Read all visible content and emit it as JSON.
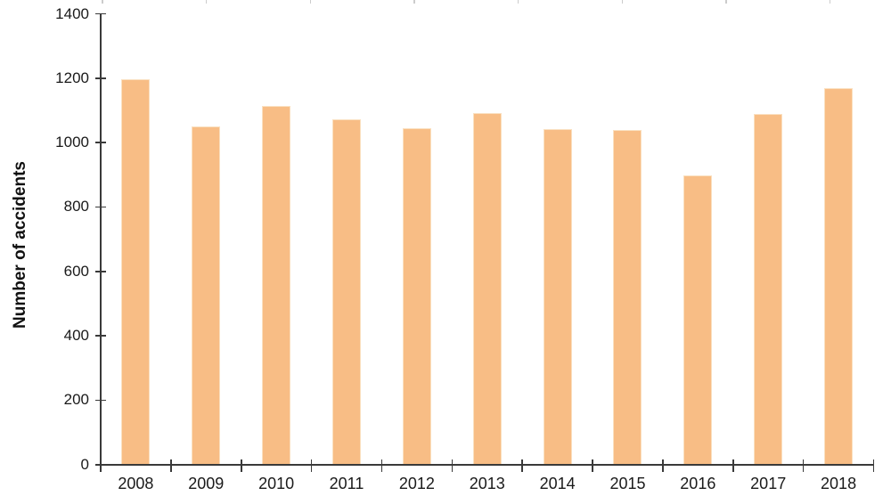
{
  "chart_data": {
    "type": "bar",
    "title": "",
    "xlabel": "",
    "ylabel": "Number of accidents",
    "categories": [
      "2008",
      "2009",
      "2010",
      "2011",
      "2012",
      "2013",
      "2014",
      "2015",
      "2016",
      "2017",
      "2018"
    ],
    "values": [
      1196,
      1051,
      1113,
      1071,
      1046,
      1091,
      1043,
      1040,
      897,
      1089,
      1168
    ],
    "ylim": [
      0,
      1400
    ],
    "ytick_step": 200,
    "ytick_labels": [
      "0",
      "200",
      "400",
      "600",
      "800",
      "1000",
      "1200",
      "1400"
    ],
    "grid": false,
    "legend_position": "none",
    "bar_color": "#F8BD85",
    "bar_edge_color": "#FAE0C0",
    "axis_color": "#3a3a3a",
    "text_color": "#1a1a1a"
  },
  "decor": {
    "top_tick_color": "#cccccc",
    "top_tick_xs": [
      115,
      231.6,
      348.3,
      465,
      581.6,
      698.3,
      815,
      931.6
    ]
  }
}
